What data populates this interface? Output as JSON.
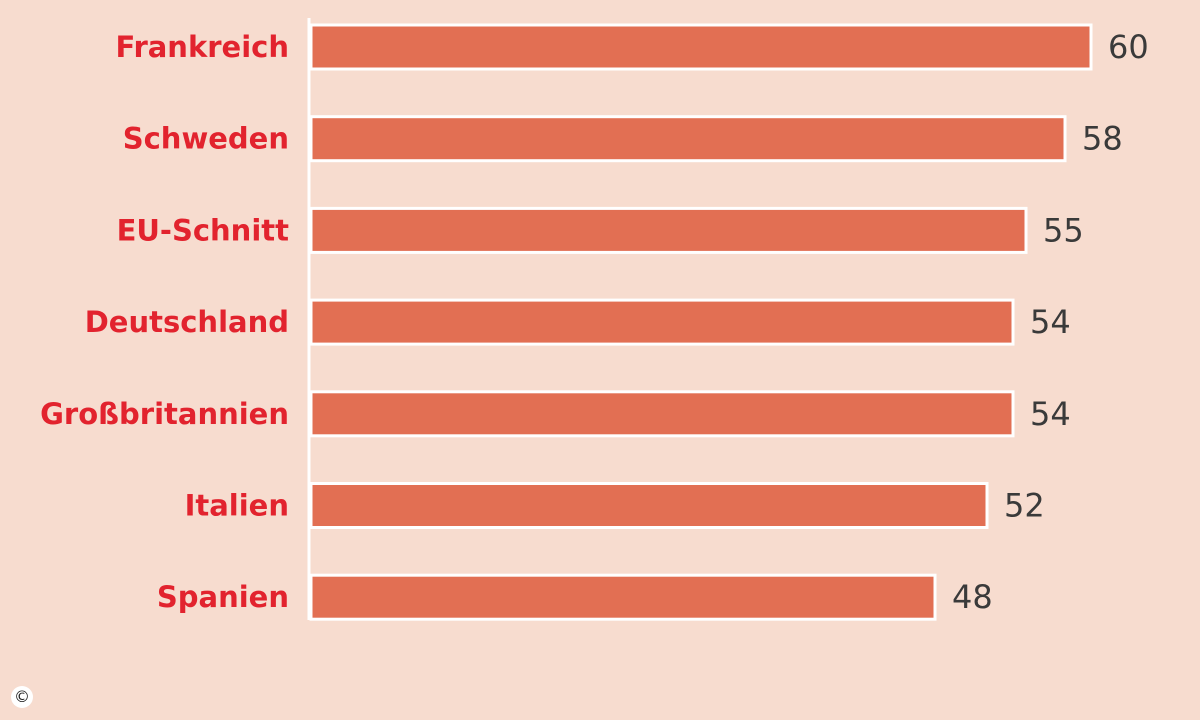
{
  "chart_data": {
    "type": "bar",
    "orientation": "horizontal",
    "categories": [
      "Frankreich",
      "Schweden",
      "EU-Schnitt",
      "Deutschland",
      "Großbritannien",
      "Italien",
      "Spanien"
    ],
    "values": [
      60,
      58,
      55,
      54,
      54,
      52,
      48
    ],
    "value_labels": [
      "60",
      "58",
      "55",
      "54",
      "54",
      "52",
      "48"
    ],
    "title": "",
    "xlabel": "",
    "ylabel": "",
    "xlim": [
      0,
      60
    ],
    "grid": false,
    "legend": "none",
    "colors": {
      "background": "#f7dccf",
      "bar": "#e26f53",
      "bar_outline": "#ffffff",
      "category_label": "#e2232e",
      "value_label": "#3a3a3a"
    }
  },
  "footer": {
    "copyright_symbol": "©"
  }
}
